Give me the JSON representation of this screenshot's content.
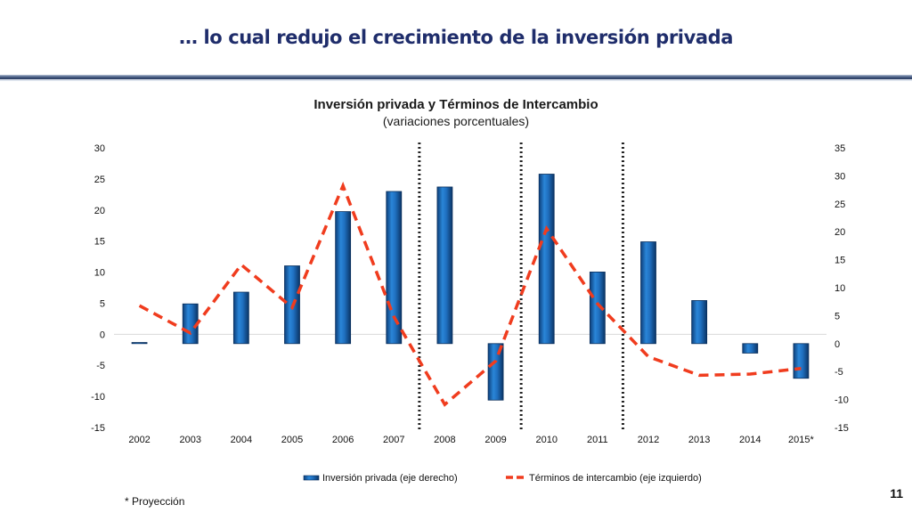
{
  "slide": {
    "title": "… lo cual redujo el crecimiento de la inversión privada",
    "footnote": "* Proyección",
    "page_number": "11"
  },
  "chart_data": {
    "type": "bar",
    "title": "Inversión privada y Términos de Intercambio",
    "subtitle": "(variaciones porcentuales)",
    "categories": [
      "2002",
      "2003",
      "2004",
      "2005",
      "2006",
      "2007",
      "2008",
      "2009",
      "2010",
      "2011",
      "2012",
      "2013",
      "2014",
      "2015*"
    ],
    "series": [
      {
        "name": "Inversión privada (eje derecho)",
        "type": "bar",
        "axis": "right",
        "color": "#1f6fbf",
        "values": [
          0.2,
          7.1,
          9.2,
          13.9,
          23.6,
          27.2,
          28.0,
          -10.1,
          30.3,
          12.8,
          18.2,
          7.7,
          -1.7,
          -6.2
        ]
      },
      {
        "name": "Términos de intercambio (eje izquierdo)",
        "type": "line",
        "axis": "left",
        "style": "dashed",
        "color": "#f03c1e",
        "values": [
          4.6,
          0.2,
          11.2,
          4.3,
          23.9,
          2.8,
          -11.3,
          -4.3,
          17.0,
          4.9,
          -3.6,
          -6.6,
          -6.4,
          -5.5
        ]
      }
    ],
    "left_axis": {
      "min": -15,
      "max": 30,
      "step": 5,
      "ticks": [
        "30",
        "25",
        "20",
        "15",
        "10",
        "5",
        "0",
        "-5",
        "-10",
        "-15"
      ]
    },
    "right_axis": {
      "min": -15,
      "max": 35,
      "step": 5,
      "ticks": [
        "35",
        "30",
        "25",
        "20",
        "15",
        "10",
        "5",
        "0",
        "-5",
        "-10",
        "-15"
      ]
    },
    "vertical_separators_after": [
      "2007",
      "2009",
      "2011"
    ],
    "grid": false,
    "legend_position": "bottom"
  }
}
